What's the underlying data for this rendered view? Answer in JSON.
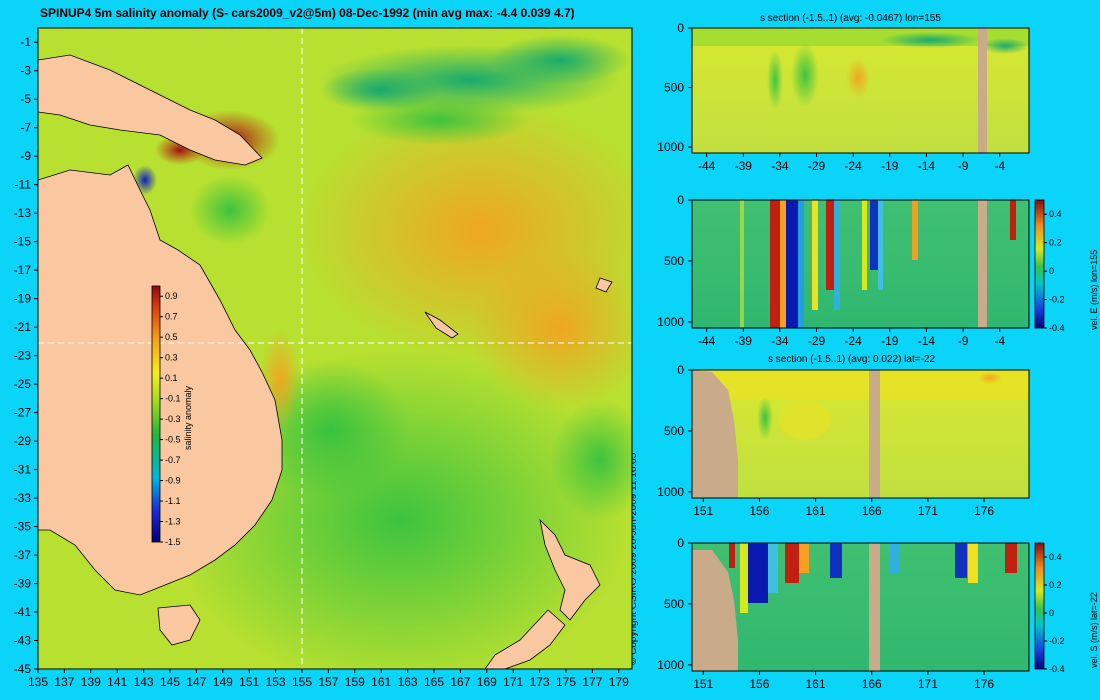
{
  "title": "SPINUP4 5m salinity anomaly (S- cars2009_v2@5m) 08-Dec-1992 (min avg max: -4.4 0.039 4.7)",
  "copyright": "© Copyright CSIRO 2009   20-Jun-2009 11:16:05",
  "colors": {
    "background": "#0ad4f8",
    "land": "#f9c8a0",
    "section_land": "#c9ab8a"
  },
  "chart_data": [
    {
      "type": "heatmap",
      "name": "main-map",
      "title": "SPINUP4 5m salinity anomaly (S- cars2009_v2@5m) 08-Dec-1992 (min avg max: -4.4 0.039 4.7)",
      "xlabel": "",
      "ylabel": "",
      "xlim": [
        135,
        180
      ],
      "ylim": [
        -45,
        0
      ],
      "x_ticks": [
        "135",
        "137",
        "139",
        "141",
        "143",
        "145",
        "147",
        "149",
        "151",
        "153",
        "155",
        "157",
        "159",
        "161",
        "163",
        "165",
        "167",
        "169",
        "171",
        "173",
        "175",
        "177",
        "179"
      ],
      "y_ticks": [
        "-1",
        "-3",
        "-5",
        "-7",
        "-9",
        "-11",
        "-13",
        "-15",
        "-17",
        "-19",
        "-21",
        "-23",
        "-25",
        "-27",
        "-29",
        "-31",
        "-33",
        "-35",
        "-37",
        "-39",
        "-41",
        "-43",
        "-45"
      ],
      "section_lines": {
        "lon": 155,
        "lat": -22
      },
      "colorbar": {
        "label": "salinity anomaly",
        "ticks": [
          "0.9",
          "0.7",
          "0.5",
          "0.3",
          "0.1",
          "-0.1",
          "-0.3",
          "-0.5",
          "-0.7",
          "-0.9",
          "-1.1",
          "-1.3",
          "-1.5"
        ],
        "range": [
          -1.5,
          1.0
        ]
      }
    },
    {
      "type": "heatmap",
      "name": "s-section-lon155",
      "title": "s section (-1.5..1) (avg: -0.0467) lon=155",
      "x_ticks": [
        "-44",
        "-39",
        "-34",
        "-29",
        "-24",
        "-19",
        "-14",
        "-9",
        "-4"
      ],
      "xlim": [
        -46,
        0
      ],
      "y_ticks": [
        "0",
        "500",
        "1000"
      ],
      "ylim": [
        0,
        1050
      ],
      "colorbar": null
    },
    {
      "type": "heatmap",
      "name": "vel-e-section-lon155",
      "title": "",
      "x_ticks": [
        "-44",
        "-39",
        "-34",
        "-29",
        "-24",
        "-19",
        "-14",
        "-9",
        "-4"
      ],
      "xlim": [
        -46,
        0
      ],
      "y_ticks": [
        "0",
        "500",
        "1000"
      ],
      "ylim": [
        0,
        1050
      ],
      "colorbar": {
        "label": "vel. E (m/s) lon=155",
        "ticks": [
          "0.4",
          "0.2",
          "0",
          "-0.2",
          "-0.4"
        ],
        "range": [
          -0.4,
          0.5
        ]
      }
    },
    {
      "type": "heatmap",
      "name": "s-section-lat-22",
      "title": "s section (-1.5..1) (avg: 0.022) lat=-22",
      "x_ticks": [
        "151",
        "156",
        "161",
        "166",
        "171",
        "176"
      ],
      "xlim": [
        150,
        180
      ],
      "y_ticks": [
        "0",
        "500",
        "1000"
      ],
      "ylim": [
        0,
        1050
      ],
      "colorbar": null
    },
    {
      "type": "heatmap",
      "name": "vel-s-section-lat-22",
      "title": "",
      "x_ticks": [
        "151",
        "156",
        "161",
        "166",
        "171",
        "176"
      ],
      "xlim": [
        150,
        180
      ],
      "y_ticks": [
        "0",
        "500",
        "1000"
      ],
      "ylim": [
        0,
        1050
      ],
      "colorbar": {
        "label": "vel. S (m/s) lat=-22",
        "ticks": [
          "0.4",
          "0.2",
          "0",
          "-0.2",
          "-0.4"
        ],
        "range": [
          -0.4,
          0.5
        ]
      }
    }
  ]
}
